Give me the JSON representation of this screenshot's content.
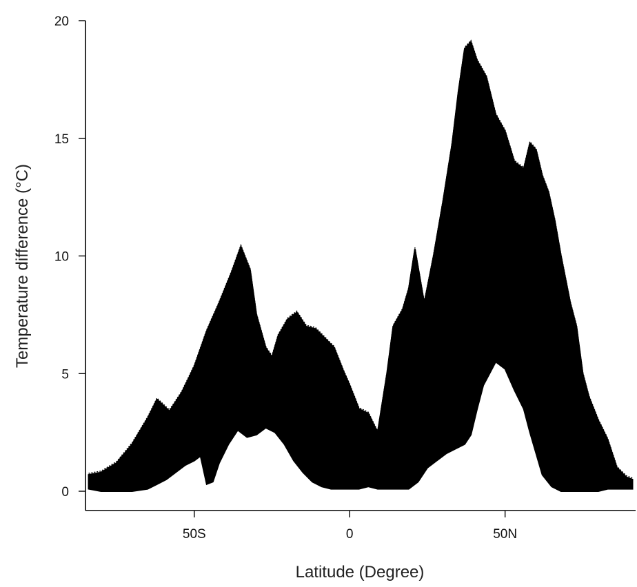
{
  "chart_data": {
    "type": "scatter",
    "title": "",
    "xlabel": "Latitude (Degree)",
    "ylabel": "Temperature difference (°C)",
    "xlim": [
      -85,
      92
    ],
    "ylim": [
      0,
      20
    ],
    "x_ticks": [
      {
        "value": -50,
        "label": "50S"
      },
      {
        "value": 0,
        "label": "0"
      },
      {
        "value": 50,
        "label": "50N"
      }
    ],
    "y_ticks": [
      {
        "value": 0,
        "label": "0"
      },
      {
        "value": 5,
        "label": "5"
      },
      {
        "value": 10,
        "label": "10"
      },
      {
        "value": 15,
        "label": "15"
      },
      {
        "value": 20,
        "label": "20"
      }
    ],
    "grid": false,
    "marker": "open-circle",
    "series": [
      {
        "upper": [
          [
            -84,
            0.7
          ],
          [
            -80,
            0.8
          ],
          [
            -75,
            1.2
          ],
          [
            -70,
            2.0
          ],
          [
            -65,
            3.1
          ],
          [
            -62,
            3.9
          ],
          [
            -58,
            3.4
          ],
          [
            -54,
            4.2
          ],
          [
            -50,
            5.3
          ],
          [
            -46,
            6.8
          ],
          [
            -42,
            8.0
          ],
          [
            -38,
            9.3
          ],
          [
            -35,
            10.4
          ],
          [
            -32,
            9.4
          ],
          [
            -30,
            7.5
          ],
          [
            -27,
            6.1
          ],
          [
            -25,
            5.7
          ],
          [
            -23,
            6.6
          ],
          [
            -20,
            7.3
          ],
          [
            -17,
            7.6
          ],
          [
            -14,
            7.0
          ],
          [
            -11,
            6.9
          ],
          [
            -8,
            6.5
          ],
          [
            -5,
            6.1
          ],
          [
            -2,
            5.1
          ],
          [
            0,
            4.5
          ],
          [
            3,
            3.5
          ],
          [
            6,
            3.3
          ],
          [
            9,
            2.5
          ],
          [
            12,
            5.0
          ],
          [
            14,
            7.0
          ],
          [
            17,
            7.7
          ],
          [
            19,
            8.6
          ],
          [
            21,
            10.3
          ],
          [
            24,
            8.0
          ],
          [
            27,
            10.0
          ],
          [
            30,
            12.3
          ],
          [
            33,
            14.8
          ],
          [
            35,
            17.0
          ],
          [
            37,
            18.8
          ],
          [
            39,
            19.1
          ],
          [
            41,
            18.3
          ],
          [
            44,
            17.6
          ],
          [
            47,
            16.0
          ],
          [
            50,
            15.3
          ],
          [
            53,
            14.0
          ],
          [
            56,
            13.7
          ],
          [
            58,
            14.8
          ],
          [
            60,
            14.5
          ],
          [
            62,
            13.4
          ],
          [
            64,
            12.7
          ],
          [
            66,
            11.5
          ],
          [
            68,
            10.0
          ],
          [
            71,
            8.0
          ],
          [
            73,
            7.0
          ],
          [
            75,
            5.0
          ],
          [
            77,
            4.0
          ],
          [
            80,
            3.0
          ],
          [
            83,
            2.2
          ],
          [
            86,
            1.0
          ],
          [
            89,
            0.6
          ],
          [
            91,
            0.5
          ]
        ],
        "lower": [
          [
            91,
            0.1
          ],
          [
            89,
            0.1
          ],
          [
            86,
            0.1
          ],
          [
            83,
            0.1
          ],
          [
            80,
            0.0
          ],
          [
            77,
            0.0
          ],
          [
            74,
            0.0
          ],
          [
            71,
            0.0
          ],
          [
            68,
            0.0
          ],
          [
            65,
            0.2
          ],
          [
            62,
            0.7
          ],
          [
            60,
            1.6
          ],
          [
            58,
            2.5
          ],
          [
            56,
            3.5
          ],
          [
            53,
            4.3
          ],
          [
            50,
            5.2
          ],
          [
            47,
            5.5
          ],
          [
            45,
            5.0
          ],
          [
            43,
            4.5
          ],
          [
            41,
            3.5
          ],
          [
            39,
            2.4
          ],
          [
            37,
            2.0
          ],
          [
            34,
            1.8
          ],
          [
            31,
            1.6
          ],
          [
            28,
            1.3
          ],
          [
            25,
            1.0
          ],
          [
            22,
            0.4
          ],
          [
            19,
            0.1
          ],
          [
            16,
            0.1
          ],
          [
            12,
            0.1
          ],
          [
            9,
            0.1
          ],
          [
            6,
            0.2
          ],
          [
            3,
            0.1
          ],
          [
            0,
            0.1
          ],
          [
            -3,
            0.1
          ],
          [
            -6,
            0.1
          ],
          [
            -9,
            0.2
          ],
          [
            -12,
            0.4
          ],
          [
            -15,
            0.8
          ],
          [
            -18,
            1.3
          ],
          [
            -21,
            2.0
          ],
          [
            -24,
            2.5
          ],
          [
            -27,
            2.7
          ],
          [
            -30,
            2.4
          ],
          [
            -33,
            2.3
          ],
          [
            -36,
            2.6
          ],
          [
            -39,
            2.0
          ],
          [
            -42,
            1.2
          ],
          [
            -44,
            0.4
          ],
          [
            -46,
            0.3
          ],
          [
            -48,
            1.5
          ],
          [
            -50,
            1.3
          ],
          [
            -53,
            1.1
          ],
          [
            -56,
            0.8
          ],
          [
            -59,
            0.5
          ],
          [
            -62,
            0.3
          ],
          [
            -65,
            0.1
          ],
          [
            -70,
            0.0
          ],
          [
            -75,
            0.0
          ],
          [
            -80,
            0.0
          ],
          [
            -84,
            0.1
          ]
        ]
      }
    ]
  }
}
